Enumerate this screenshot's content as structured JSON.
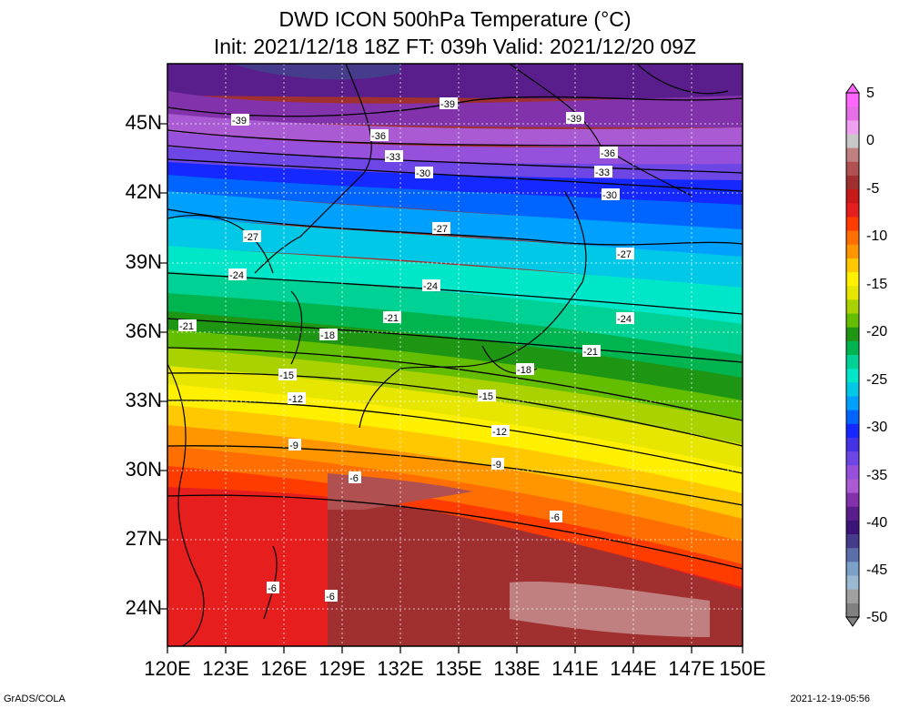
{
  "title": {
    "line1": "DWD ICON 500hPa Temperature (°C)",
    "line2": "Init: 2021/12/18 18Z  FT: 039h  Valid: 2021/12/20 09Z"
  },
  "lat_labels": [
    "45N",
    "42N",
    "39N",
    "36N",
    "33N",
    "30N",
    "27N",
    "24N"
  ],
  "lon_labels": [
    "120E",
    "123E",
    "126E",
    "129E",
    "132E",
    "135E",
    "138E",
    "141E",
    "144E",
    "147E",
    "150E"
  ],
  "colorbar": {
    "labels": [
      "5",
      "0",
      "-5",
      "-10",
      "-15",
      "-20",
      "-25",
      "-30",
      "-35",
      "-40",
      "-45",
      "-50"
    ],
    "colors": [
      "#ff66ff",
      "#e66ee6",
      "#f0a0f0",
      "#c8c8c8",
      "#c08080",
      "#b05050",
      "#a03030",
      "#c81818",
      "#e61e1e",
      "#ff3c00",
      "#ff6e00",
      "#ff9600",
      "#ffc800",
      "#fff000",
      "#e6e600",
      "#aad200",
      "#64be00",
      "#1e9614",
      "#00b450",
      "#00d296",
      "#00e6c8",
      "#00c8e6",
      "#00a0ff",
      "#0064ff",
      "#1428ff",
      "#4632e6",
      "#6e46e6",
      "#9650dc",
      "#aa5ad2",
      "#8232aa",
      "#5a1e8c",
      "#3c1478",
      "#463c8c",
      "#5a6eaa",
      "#7ca0c8",
      "#9ab8d2",
      "#a0a0a0",
      "#808080"
    ]
  },
  "contour_labels": [
    "-39",
    "-39",
    "-39",
    "-36",
    "-36",
    "-33",
    "-33",
    "-30",
    "-30",
    "-27",
    "-27",
    "-27",
    "-24",
    "-24",
    "-24",
    "-21",
    "-21",
    "-21",
    "-18",
    "-18",
    "-15",
    "-15",
    "-12",
    "-12",
    "-9",
    "-9",
    "-6",
    "-6",
    "-6",
    "-6"
  ],
  "footer": {
    "left": "GrADS/COLA",
    "right": "2021-12-19-05:56"
  },
  "colors": {
    "frame": "#000000",
    "grid": "#ffffff",
    "coast": "#000000"
  }
}
